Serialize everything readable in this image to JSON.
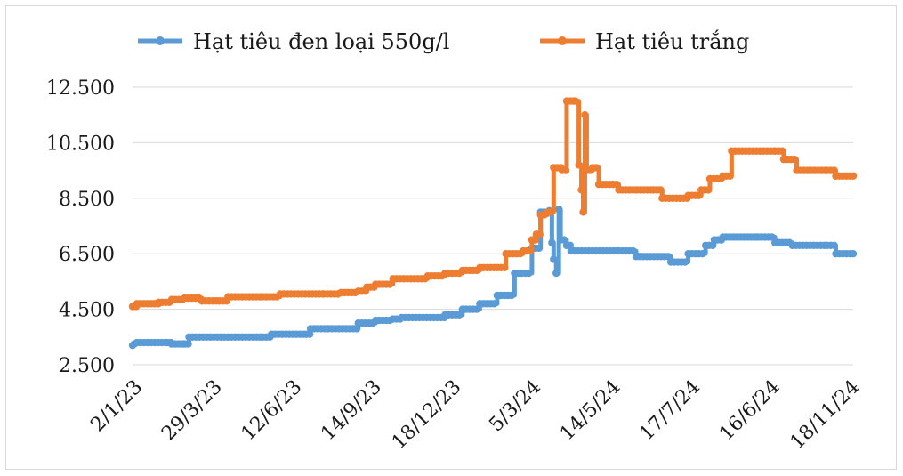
{
  "chart_data": {
    "type": "line",
    "title": "",
    "xlabel": "",
    "ylabel": "",
    "ylim": [
      2500,
      12500
    ],
    "yticks": [
      "2.500",
      "4.500",
      "6.500",
      "8.500",
      "10.500",
      "12.500"
    ],
    "ytick_values": [
      2500,
      4500,
      6500,
      8500,
      10500,
      12500
    ],
    "xticks": [
      "2/1/23",
      "29/3/23",
      "12/6/23",
      "14/9/23",
      "18/12/23",
      "5/3/24",
      "14/5/24",
      "17/7/24",
      "16/6/24",
      "18/11/24"
    ],
    "grid": true,
    "legend_position": "top",
    "series": [
      {
        "name": "Hạt tiêu đen loại 550g/l",
        "color": "#5b9bd5",
        "points": [
          [
            0,
            3200
          ],
          [
            2,
            3250
          ],
          [
            5,
            3300
          ],
          [
            40,
            3300
          ],
          [
            45,
            3250
          ],
          [
            60,
            3250
          ],
          [
            65,
            3500
          ],
          [
            150,
            3500
          ],
          [
            160,
            3600
          ],
          [
            200,
            3600
          ],
          [
            205,
            3800
          ],
          [
            250,
            3800
          ],
          [
            260,
            4000
          ],
          [
            280,
            4100
          ],
          [
            300,
            4150
          ],
          [
            310,
            4200
          ],
          [
            360,
            4300
          ],
          [
            380,
            4500
          ],
          [
            400,
            4700
          ],
          [
            420,
            5000
          ],
          [
            440,
            5800
          ],
          [
            460,
            6700
          ],
          [
            470,
            8000
          ],
          [
            480,
            8050
          ],
          [
            483,
            6900
          ],
          [
            485,
            6300
          ],
          [
            488,
            5800
          ],
          [
            491,
            8100
          ],
          [
            493,
            7000
          ],
          [
            500,
            6800
          ],
          [
            505,
            6600
          ],
          [
            560,
            6600
          ],
          [
            580,
            6400
          ],
          [
            620,
            6200
          ],
          [
            640,
            6500
          ],
          [
            660,
            6800
          ],
          [
            670,
            7000
          ],
          [
            680,
            7100
          ],
          [
            720,
            7100
          ],
          [
            740,
            6900
          ],
          [
            760,
            6800
          ],
          [
            800,
            6800
          ],
          [
            810,
            6500
          ],
          [
            830,
            6500
          ]
        ]
      },
      {
        "name": "Hạt tiêu trắng",
        "color": "#ed7d31",
        "points": [
          [
            0,
            4600
          ],
          [
            5,
            4700
          ],
          [
            30,
            4750
          ],
          [
            45,
            4850
          ],
          [
            60,
            4900
          ],
          [
            80,
            4800
          ],
          [
            100,
            4800
          ],
          [
            110,
            4950
          ],
          [
            150,
            4950
          ],
          [
            170,
            5050
          ],
          [
            220,
            5050
          ],
          [
            240,
            5100
          ],
          [
            260,
            5150
          ],
          [
            270,
            5300
          ],
          [
            280,
            5400
          ],
          [
            300,
            5600
          ],
          [
            340,
            5700
          ],
          [
            360,
            5800
          ],
          [
            380,
            5900
          ],
          [
            400,
            6000
          ],
          [
            430,
            6500
          ],
          [
            450,
            6600
          ],
          [
            460,
            7000
          ],
          [
            465,
            7200
          ],
          [
            470,
            7900
          ],
          [
            478,
            8000
          ],
          [
            485,
            9600
          ],
          [
            495,
            9500
          ],
          [
            500,
            12000
          ],
          [
            510,
            12000
          ],
          [
            514,
            9700
          ],
          [
            517,
            8800
          ],
          [
            519,
            8000
          ],
          [
            521,
            11500
          ],
          [
            523,
            9500
          ],
          [
            530,
            9600
          ],
          [
            537,
            9000
          ],
          [
            560,
            8800
          ],
          [
            600,
            8800
          ],
          [
            610,
            8500
          ],
          [
            640,
            8600
          ],
          [
            655,
            8800
          ],
          [
            665,
            9200
          ],
          [
            680,
            9300
          ],
          [
            690,
            10200
          ],
          [
            740,
            10200
          ],
          [
            750,
            9900
          ],
          [
            765,
            9500
          ],
          [
            800,
            9500
          ],
          [
            810,
            9300
          ],
          [
            830,
            9300
          ]
        ]
      }
    ]
  }
}
